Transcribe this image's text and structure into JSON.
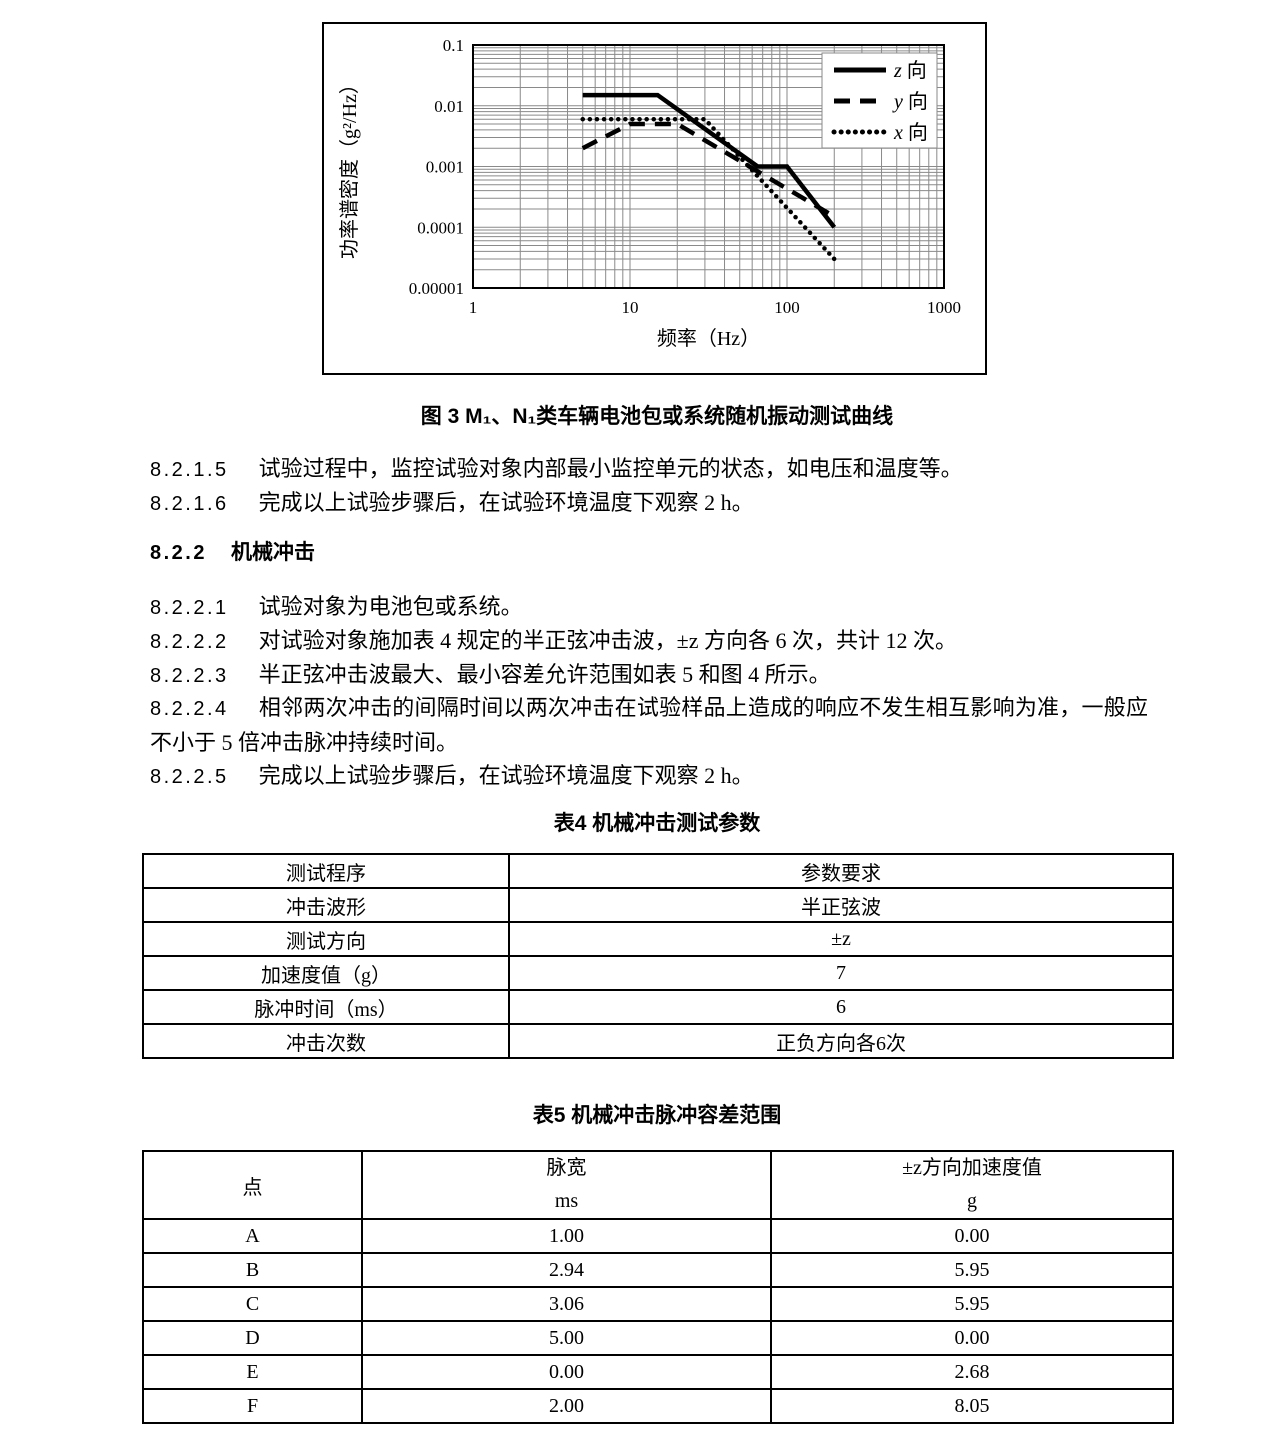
{
  "figure": {
    "caption": "图 3  M₁、N₁类车辆电池包或系统随机振动测试曲线"
  },
  "chart_data": {
    "type": "line",
    "title": "",
    "xlabel": "频率（Hz）",
    "ylabel": "功率谱密度（g²/Hz）",
    "x_scale": "log",
    "y_scale": "log",
    "xlim": [
      1,
      1000
    ],
    "ylim": [
      1e-05,
      0.1
    ],
    "x_ticks": [
      "1",
      "10",
      "100",
      "1000"
    ],
    "y_ticks": [
      "0.1",
      "0.01",
      "0.001",
      "0.0001",
      "0.00001"
    ],
    "grid": "log-minor-and-major",
    "legend_position": "top-right",
    "series": [
      {
        "name": "z 向",
        "style": "solid",
        "points": [
          [
            5,
            0.015
          ],
          [
            15,
            0.015
          ],
          [
            65,
            0.001
          ],
          [
            100,
            0.001
          ],
          [
            200,
            0.0001
          ]
        ]
      },
      {
        "name": "y 向",
        "style": "dashed",
        "points": [
          [
            5,
            0.002
          ],
          [
            10,
            0.005
          ],
          [
            20,
            0.005
          ],
          [
            200,
            0.00015
          ]
        ]
      },
      {
        "name": "x 向",
        "style": "dotted",
        "points": [
          [
            5,
            0.006
          ],
          [
            30,
            0.006
          ],
          [
            200,
            3e-05
          ]
        ]
      }
    ]
  },
  "clauses": [
    {
      "num": "8.2.1.5",
      "text": "试验过程中，监控试验对象内部最小监控单元的状态，如电压和温度等。"
    },
    {
      "num": "8.2.1.6",
      "text": "完成以上试验步骤后，在试验环境温度下观察 2 h。"
    },
    {
      "num": "8.2.2.1",
      "text": "试验对象为电池包或系统。"
    },
    {
      "num": "8.2.2.2",
      "text": "对试验对象施加表 4 规定的半正弦冲击波，±z 方向各 6 次，共计 12 次。"
    },
    {
      "num": "8.2.2.3",
      "text": "半正弦冲击波最大、最小容差允许范围如表 5 和图 4 所示。"
    },
    {
      "num": "8.2.2.4",
      "text": "相邻两次冲击的间隔时间以两次冲击在试验样品上造成的响应不发生相互影响为准，一般应不小于 5 倍冲击脉冲持续时间。"
    },
    {
      "num": "8.2.2.5",
      "text": "完成以上试验步骤后，在试验环境温度下观察 2 h。"
    }
  ],
  "heading": {
    "num": "8.2.2",
    "title": "机械冲击"
  },
  "table4": {
    "title": "表4  机械冲击测试参数",
    "header": [
      "测试程序",
      "参数要求"
    ],
    "rows": [
      [
        "冲击波形",
        "半正弦波"
      ],
      [
        "测试方向",
        "±z"
      ],
      [
        "加速度值（g）",
        "7"
      ],
      [
        "脉冲时间（ms）",
        "6"
      ],
      [
        "冲击次数",
        "正负方向各6次"
      ]
    ]
  },
  "table5": {
    "title": "表5  机械冲击脉冲容差范围",
    "header": {
      "col1": "点",
      "col2_line1": "脉宽",
      "col2_line2": "ms",
      "col3_line1": "±z方向加速度值",
      "col3_line2": "g"
    },
    "rows": [
      [
        "A",
        "1.00",
        "0.00"
      ],
      [
        "B",
        "2.94",
        "5.95"
      ],
      [
        "C",
        "3.06",
        "5.95"
      ],
      [
        "D",
        "5.00",
        "0.00"
      ],
      [
        "E",
        "0.00",
        "2.68"
      ],
      [
        "F",
        "2.00",
        "8.05"
      ]
    ]
  }
}
